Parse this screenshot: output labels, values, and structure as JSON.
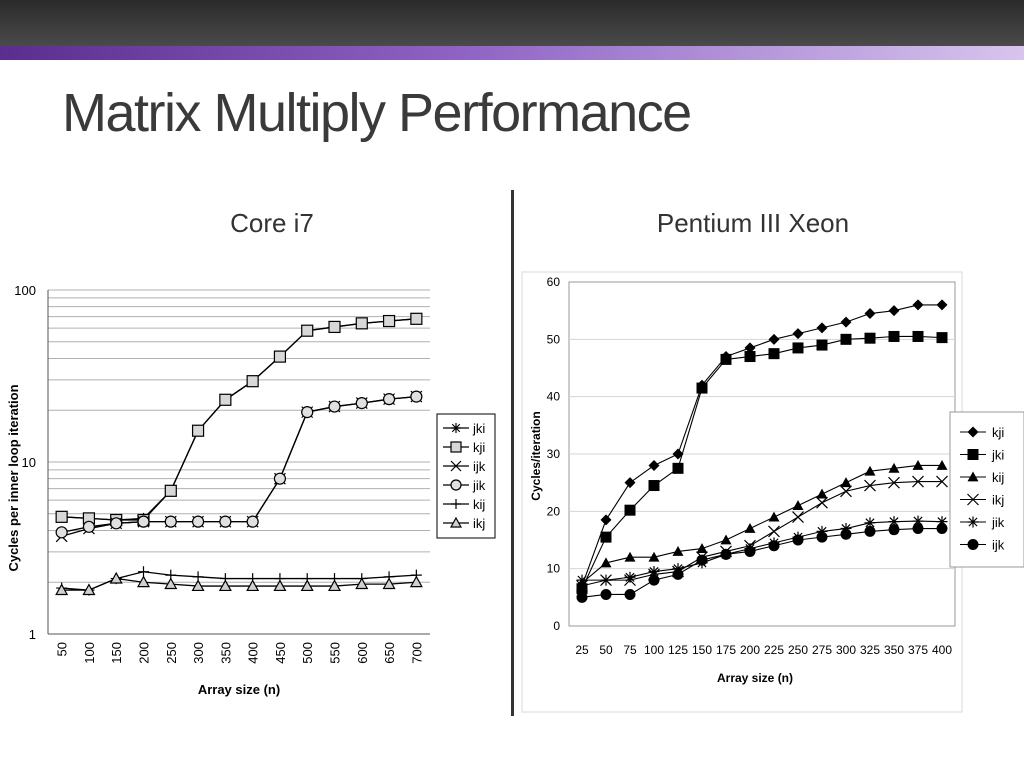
{
  "slide": {
    "title": "Matrix Multiply Performance",
    "left_caption": "Core i7",
    "right_caption": "Pentium III Xeon"
  },
  "chart_data": [
    {
      "type": "line",
      "y_scale": "log",
      "categories": [
        "50",
        "100",
        "150",
        "200",
        "250",
        "300",
        "350",
        "400",
        "450",
        "500",
        "550",
        "600",
        "650",
        "700"
      ],
      "x": [
        50,
        100,
        150,
        200,
        250,
        300,
        350,
        400,
        450,
        500,
        550,
        600,
        650,
        700
      ],
      "ylim": [
        1,
        100
      ],
      "yticks": [
        "1",
        "10",
        "100"
      ],
      "xlabel": "Array size (n)",
      "ylabel": "Cycles per inner loop iteration",
      "legend_position": "right",
      "series": [
        {
          "name": "jki",
          "marker": "star",
          "values": [
            4.8,
            4.7,
            4.6,
            4.7,
            6.8,
            15.2,
            23,
            29.5,
            41,
            58,
            61,
            64,
            66,
            68
          ]
        },
        {
          "name": "kji",
          "marker": "square",
          "values": [
            4.8,
            4.7,
            4.6,
            4.6,
            6.8,
            15.2,
            23,
            29.5,
            41,
            58,
            61,
            64,
            66,
            68
          ]
        },
        {
          "name": "ijk",
          "marker": "x",
          "values": [
            3.7,
            4.1,
            4.4,
            4.5,
            4.5,
            4.5,
            4.5,
            4.5,
            8,
            19.5,
            21,
            22,
            23.2,
            24
          ]
        },
        {
          "name": "jik",
          "marker": "circle",
          "values": [
            3.9,
            4.2,
            4.4,
            4.5,
            4.5,
            4.5,
            4.5,
            4.5,
            8,
            19.5,
            21,
            22,
            23.2,
            24
          ]
        },
        {
          "name": "kij",
          "marker": "plus",
          "values": [
            1.85,
            1.8,
            2.1,
            2.3,
            2.2,
            2.15,
            2.1,
            2.1,
            2.1,
            2.1,
            2.1,
            2.1,
            2.15,
            2.2
          ]
        },
        {
          "name": "ikj",
          "marker": "triangle-open",
          "values": [
            1.8,
            1.8,
            2.1,
            2.0,
            1.95,
            1.9,
            1.9,
            1.9,
            1.9,
            1.9,
            1.9,
            1.95,
            1.95,
            2.0
          ]
        }
      ]
    },
    {
      "type": "line",
      "categories": [
        "25",
        "50",
        "75",
        "100",
        "125",
        "150",
        "175",
        "200",
        "225",
        "250",
        "275",
        "300",
        "325",
        "350",
        "375",
        "400"
      ],
      "x": [
        25,
        50,
        75,
        100,
        125,
        150,
        175,
        200,
        225,
        250,
        275,
        300,
        325,
        350,
        375,
        400
      ],
      "ylim": [
        0,
        60
      ],
      "yticks": [
        "0",
        "10",
        "20",
        "30",
        "40",
        "50",
        "60"
      ],
      "xlabel": "Array size (n)",
      "ylabel": "Cycles/iteration",
      "legend_position": "right",
      "series": [
        {
          "name": "kji",
          "marker": "diamond",
          "values": [
            7,
            18.5,
            25,
            28,
            30,
            42,
            47,
            48.5,
            50,
            51,
            52,
            53,
            54.5,
            55,
            56,
            56
          ]
        },
        {
          "name": "jki",
          "marker": "square-filled",
          "values": [
            6.5,
            15.5,
            20.2,
            24.5,
            27.5,
            41.5,
            46.5,
            47,
            47.5,
            48.5,
            49,
            50,
            50.2,
            50.5,
            50.5,
            50.3
          ]
        },
        {
          "name": "kij",
          "marker": "triangle-filled",
          "values": [
            7.5,
            11,
            12,
            12,
            13,
            13.5,
            15,
            17,
            19,
            21,
            23,
            25,
            27,
            27.5,
            28,
            28
          ]
        },
        {
          "name": "ikj",
          "marker": "x",
          "values": [
            7,
            8,
            8,
            9,
            9.5,
            12,
            13,
            14,
            16.5,
            19,
            21.5,
            23.5,
            24.5,
            25,
            25.2,
            25.2
          ]
        },
        {
          "name": "jik",
          "marker": "star",
          "values": [
            8,
            8,
            8.5,
            9.5,
            10,
            11,
            12.5,
            13.5,
            14.5,
            15.5,
            16.5,
            17,
            18,
            18.2,
            18.3,
            18.2
          ]
        },
        {
          "name": "ijk",
          "marker": "circle-filled",
          "values": [
            5,
            5.5,
            5.5,
            8,
            9,
            11.5,
            12.5,
            13,
            14,
            15,
            15.5,
            16,
            16.5,
            16.8,
            17,
            17
          ]
        }
      ]
    }
  ]
}
